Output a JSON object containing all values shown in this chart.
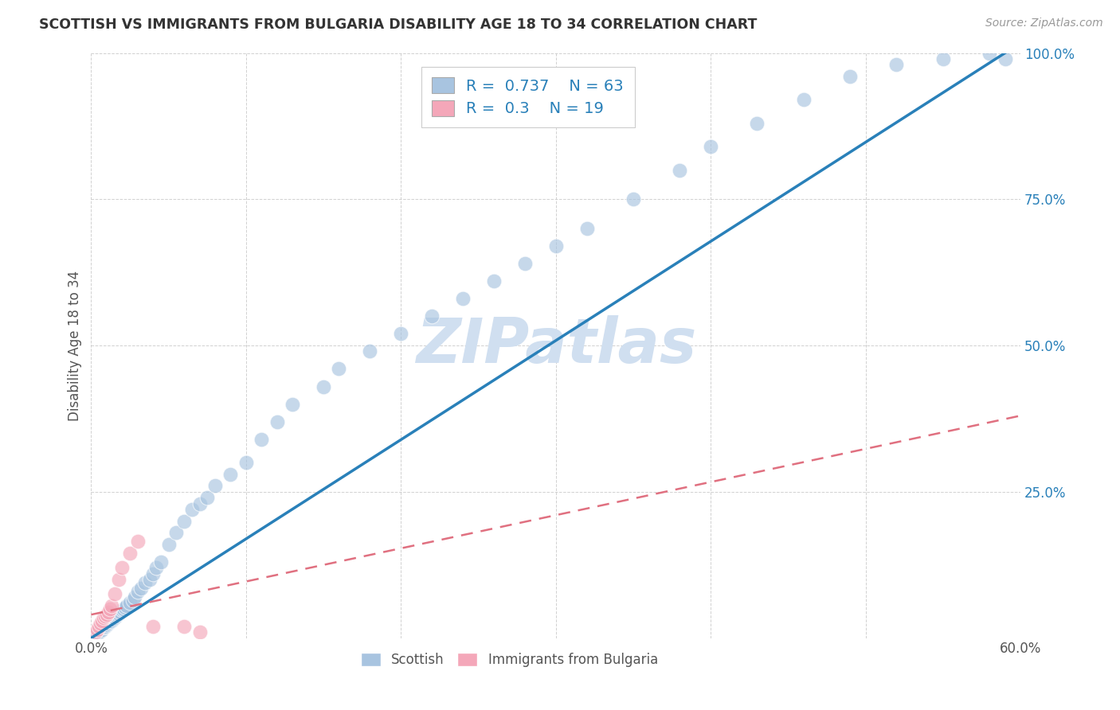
{
  "title": "SCOTTISH VS IMMIGRANTS FROM BULGARIA DISABILITY AGE 18 TO 34 CORRELATION CHART",
  "source": "Source: ZipAtlas.com",
  "ylabel": "Disability Age 18 to 34",
  "xlim": [
    0.0,
    0.6
  ],
  "ylim": [
    0.0,
    1.0
  ],
  "xticks": [
    0.0,
    0.1,
    0.2,
    0.3,
    0.4,
    0.5,
    0.6
  ],
  "xticklabels": [
    "0.0%",
    "",
    "",
    "",
    "",
    "",
    "60.0%"
  ],
  "yticks": [
    0.0,
    0.25,
    0.5,
    0.75,
    1.0
  ],
  "yticklabels": [
    "",
    "25.0%",
    "50.0%",
    "75.0%",
    "100.0%"
  ],
  "scottish_R": 0.737,
  "scottish_N": 63,
  "bulgaria_R": 0.3,
  "bulgaria_N": 19,
  "scottish_color": "#a8c4e0",
  "bulgaria_color": "#f4a7b9",
  "line_blue": "#2980b9",
  "line_pink": "#e07080",
  "watermark": "ZIPatlas",
  "watermark_color": "#d0dff0",
  "scottish_x": [
    0.003,
    0.004,
    0.005,
    0.006,
    0.007,
    0.008,
    0.009,
    0.01,
    0.011,
    0.012,
    0.013,
    0.014,
    0.015,
    0.016,
    0.017,
    0.018,
    0.019,
    0.02,
    0.021,
    0.022,
    0.023,
    0.025,
    0.027,
    0.028,
    0.03,
    0.032,
    0.035,
    0.038,
    0.04,
    0.042,
    0.045,
    0.05,
    0.055,
    0.06,
    0.065,
    0.07,
    0.075,
    0.08,
    0.09,
    0.1,
    0.11,
    0.12,
    0.13,
    0.15,
    0.16,
    0.18,
    0.2,
    0.22,
    0.24,
    0.26,
    0.28,
    0.3,
    0.32,
    0.35,
    0.38,
    0.4,
    0.43,
    0.46,
    0.49,
    0.52,
    0.55,
    0.58,
    0.59
  ],
  "scottish_y": [
    0.005,
    0.008,
    0.01,
    0.012,
    0.015,
    0.018,
    0.02,
    0.022,
    0.025,
    0.028,
    0.03,
    0.032,
    0.035,
    0.038,
    0.04,
    0.042,
    0.045,
    0.048,
    0.05,
    0.052,
    0.055,
    0.06,
    0.065,
    0.07,
    0.08,
    0.085,
    0.095,
    0.1,
    0.11,
    0.12,
    0.13,
    0.16,
    0.18,
    0.2,
    0.22,
    0.23,
    0.24,
    0.26,
    0.28,
    0.3,
    0.34,
    0.37,
    0.4,
    0.43,
    0.46,
    0.49,
    0.52,
    0.55,
    0.58,
    0.61,
    0.64,
    0.67,
    0.7,
    0.75,
    0.8,
    0.84,
    0.88,
    0.92,
    0.96,
    0.98,
    0.99,
    1.0,
    0.99
  ],
  "bulgaria_x": [
    0.003,
    0.004,
    0.005,
    0.006,
    0.007,
    0.008,
    0.009,
    0.01,
    0.011,
    0.012,
    0.013,
    0.015,
    0.018,
    0.02,
    0.025,
    0.03,
    0.04,
    0.06,
    0.07
  ],
  "bulgaria_y": [
    0.01,
    0.015,
    0.02,
    0.025,
    0.03,
    0.035,
    0.038,
    0.04,
    0.045,
    0.05,
    0.055,
    0.075,
    0.1,
    0.12,
    0.145,
    0.165,
    0.02,
    0.02,
    0.01
  ],
  "blue_line_x0": 0.0,
  "blue_line_y0": 0.0,
  "blue_line_x1": 0.59,
  "blue_line_y1": 1.0,
  "pink_line_x0": 0.0,
  "pink_line_y0": 0.04,
  "pink_line_x1": 0.6,
  "pink_line_y1": 0.38
}
